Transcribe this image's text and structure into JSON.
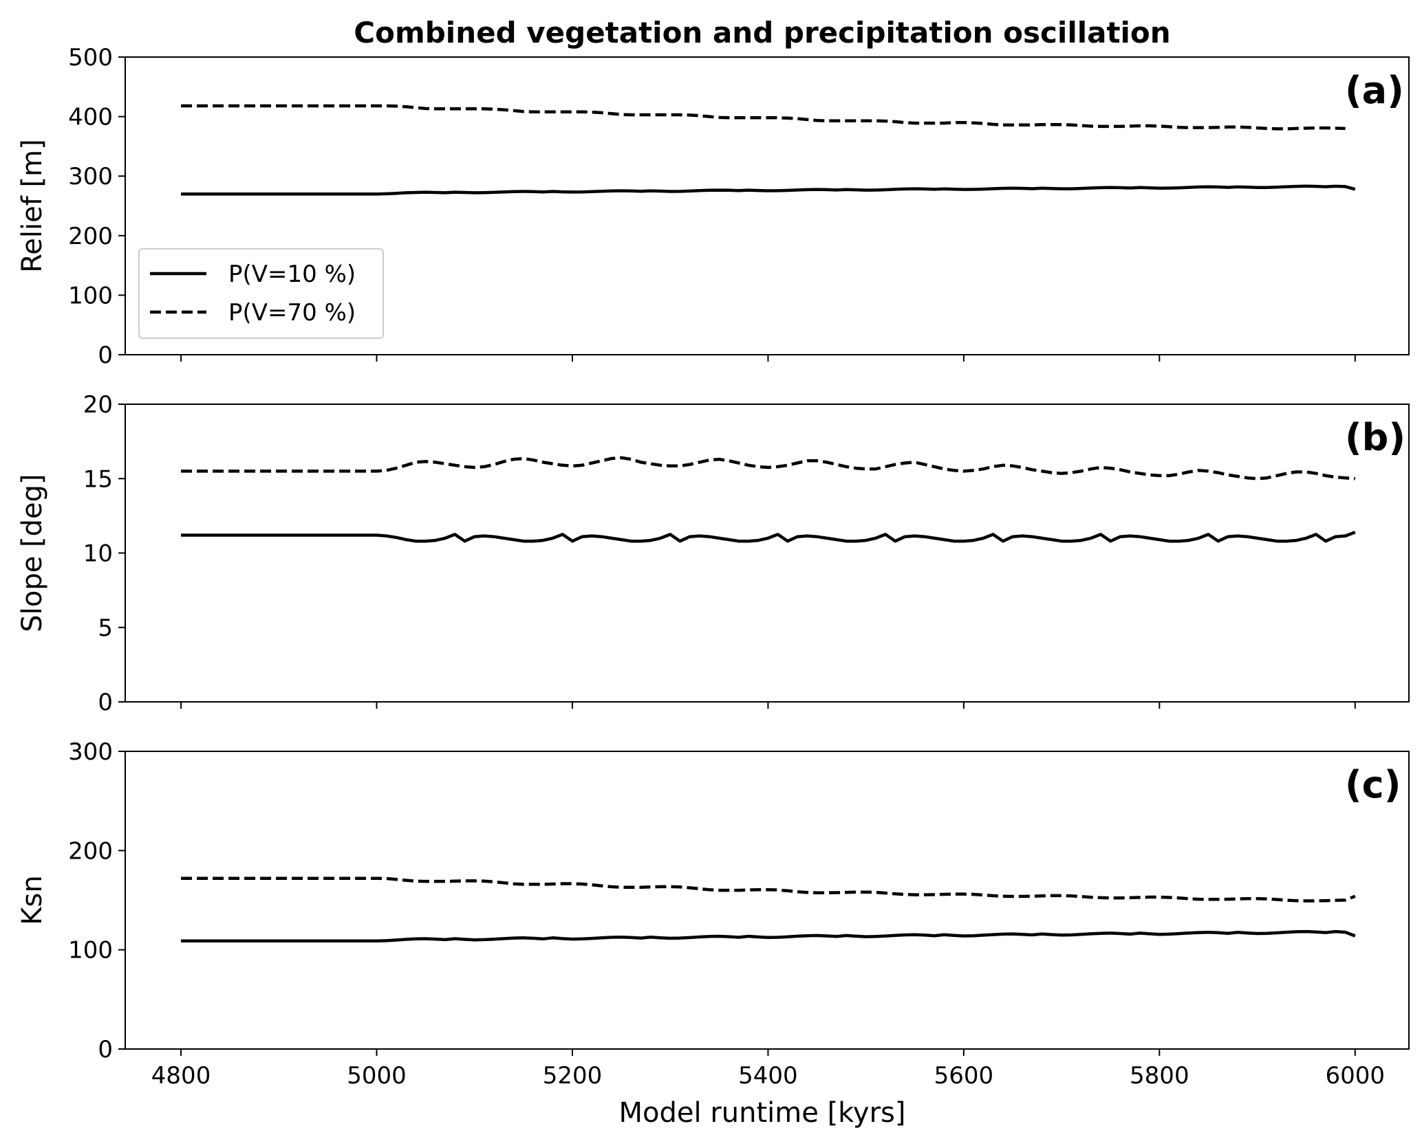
{
  "chart_data": {
    "type": "line",
    "title": "Combined vegetation and precipitation oscillation",
    "xlabel": "Model runtime [kyrs]",
    "xlim": [
      4743,
      6055
    ],
    "xticks": [
      4800,
      5000,
      5200,
      5400,
      5600,
      5800,
      6000
    ],
    "x": [
      4800,
      4810,
      4820,
      4830,
      4840,
      4850,
      4860,
      4870,
      4880,
      4890,
      4900,
      4910,
      4920,
      4930,
      4940,
      4950,
      4960,
      4970,
      4980,
      4990,
      5000,
      5010,
      5020,
      5030,
      5040,
      5050,
      5060,
      5070,
      5080,
      5090,
      5100,
      5110,
      5120,
      5130,
      5140,
      5150,
      5160,
      5170,
      5180,
      5190,
      5200,
      5210,
      5220,
      5230,
      5240,
      5250,
      5260,
      5270,
      5280,
      5290,
      5300,
      5310,
      5320,
      5330,
      5340,
      5350,
      5360,
      5370,
      5380,
      5390,
      5400,
      5410,
      5420,
      5430,
      5440,
      5450,
      5460,
      5470,
      5480,
      5490,
      5500,
      5510,
      5520,
      5530,
      5540,
      5550,
      5560,
      5570,
      5580,
      5590,
      5600,
      5610,
      5620,
      5630,
      5640,
      5650,
      5660,
      5670,
      5680,
      5690,
      5700,
      5710,
      5720,
      5730,
      5740,
      5750,
      5760,
      5770,
      5780,
      5790,
      5800,
      5810,
      5820,
      5830,
      5840,
      5850,
      5860,
      5870,
      5880,
      5890,
      5900,
      5910,
      5920,
      5930,
      5940,
      5950,
      5960,
      5970,
      5980,
      5990,
      6000
    ],
    "legend": {
      "location": "lower left",
      "panel": "a"
    },
    "grid": false,
    "panels": [
      {
        "tag": "(a)",
        "ylabel": "Relief [m]",
        "ylim": [
          0,
          500
        ],
        "yticks": [
          0,
          100,
          200,
          300,
          400,
          500
        ],
        "series": [
          {
            "name": "P(V=10 %)",
            "style": "solid",
            "values": [
              270,
              270,
              270,
              270,
              270,
              270,
              270,
              270,
              270,
              270,
              270,
              270,
              270,
              270,
              270,
              270,
              270,
              270,
              270,
              270,
              270,
              270.3,
              271,
              272,
              272.5,
              273,
              272.5,
              272,
              273,
              272.5,
              272,
              272.3,
              272.8,
              273.4,
              273.9,
              274.3,
              274,
              273.4,
              274.2,
              273.6,
              273.2,
              273.3,
              273.9,
              274.6,
              275.1,
              275.4,
              275.1,
              274.5,
              275.3,
              274.8,
              274.3,
              274.4,
              274.9,
              275.6,
              276.2,
              276.5,
              276.2,
              275.6,
              276.4,
              275.9,
              275.4,
              275.5,
              276,
              276.7,
              277.3,
              277.6,
              277.3,
              276.7,
              277.5,
              277,
              276.5,
              276.6,
              277.1,
              277.8,
              278.4,
              278.7,
              278.4,
              277.8,
              278.6,
              278.1,
              277.6,
              277.7,
              278.2,
              278.9,
              279.5,
              279.8,
              279.5,
              278.9,
              279.7,
              279.2,
              278.7,
              278.8,
              279.3,
              280,
              280.6,
              280.9,
              280.6,
              280,
              280.8,
              280.3,
              279.8,
              279.9,
              280.4,
              281.1,
              281.7,
              282,
              281.7,
              281.1,
              281.9,
              281.4,
              280.9,
              281,
              281.5,
              282.2,
              282.8,
              283.1,
              282.8,
              282.2,
              283,
              282.5,
              278
            ]
          },
          {
            "name": "P(V=70 %)",
            "style": "dashed",
            "values": [
              418,
              418,
              418,
              418,
              418,
              418,
              418,
              418,
              418,
              418,
              418,
              418,
              418,
              418,
              418,
              418,
              418,
              418,
              418,
              418,
              418,
              418,
              417.5,
              416.5,
              415,
              413.5,
              413,
              413,
              413,
              413,
              413,
              413,
              412.5,
              411.5,
              410,
              408.5,
              408,
              408,
              408,
              408,
              408,
              408,
              407.5,
              406.5,
              405,
              403.5,
              403,
              403,
              403,
              403,
              403,
              403,
              402.5,
              401.5,
              400,
              398.5,
              398,
              398,
              398,
              398,
              398,
              398,
              397.5,
              396.5,
              395,
              393.5,
              393,
              393,
              393,
              393,
              393,
              393,
              392.5,
              391.5,
              390,
              389,
              389,
              389,
              389,
              390,
              390,
              389.5,
              388.5,
              387,
              386,
              386,
              386,
              386,
              386.5,
              386.5,
              386.5,
              386,
              385,
              384,
              383.5,
              383.5,
              383.5,
              384,
              384.5,
              384.5,
              384,
              383,
              382,
              381.5,
              381.5,
              381.5,
              382,
              382.5,
              382.5,
              382,
              381,
              380,
              379.5,
              379.5,
              380,
              380.5,
              381,
              381,
              380.5,
              380
            ]
          }
        ]
      },
      {
        "tag": "(b)",
        "ylabel": "Slope [deg]",
        "ylim": [
          0,
          20
        ],
        "yticks": [
          0,
          5,
          10,
          15,
          20
        ],
        "series": [
          {
            "name": "P(V=10 %)",
            "style": "solid",
            "values": [
              11.2,
              11.2,
              11.2,
              11.2,
              11.2,
              11.2,
              11.2,
              11.2,
              11.2,
              11.2,
              11.2,
              11.2,
              11.2,
              11.2,
              11.2,
              11.2,
              11.2,
              11.2,
              11.2,
              11.2,
              11.2,
              11.15,
              11.05,
              10.9,
              10.8,
              10.8,
              10.85,
              11,
              11.25,
              10.8,
              11.1,
              11.15,
              11.1,
              11,
              10.9,
              10.8,
              10.8,
              10.85,
              11,
              11.25,
              10.8,
              11.1,
              11.15,
              11.1,
              11,
              10.9,
              10.8,
              10.8,
              10.85,
              11,
              11.25,
              10.8,
              11.1,
              11.15,
              11.1,
              11,
              10.9,
              10.8,
              10.8,
              10.85,
              11,
              11.25,
              10.8,
              11.1,
              11.15,
              11.1,
              11,
              10.9,
              10.8,
              10.8,
              10.85,
              11,
              11.25,
              10.8,
              11.1,
              11.15,
              11.1,
              11,
              10.9,
              10.8,
              10.8,
              10.85,
              11,
              11.25,
              10.8,
              11.1,
              11.15,
              11.1,
              11,
              10.9,
              10.8,
              10.8,
              10.85,
              11,
              11.25,
              10.8,
              11.1,
              11.15,
              11.1,
              11,
              10.9,
              10.8,
              10.8,
              10.85,
              11,
              11.25,
              10.8,
              11.1,
              11.15,
              11.1,
              11,
              10.9,
              10.8,
              10.8,
              10.85,
              11,
              11.25,
              10.8,
              11.1,
              11.15,
              11.4
            ]
          },
          {
            "name": "P(V=70 %)",
            "style": "dashed",
            "values": [
              15.5,
              15.5,
              15.5,
              15.5,
              15.5,
              15.5,
              15.5,
              15.5,
              15.5,
              15.5,
              15.5,
              15.5,
              15.5,
              15.5,
              15.5,
              15.5,
              15.5,
              15.5,
              15.5,
              15.5,
              15.5,
              15.55,
              15.7,
              15.9,
              16.1,
              16.15,
              16.1,
              16,
              15.9,
              15.8,
              15.75,
              15.8,
              15.95,
              16.15,
              16.3,
              16.35,
              16.25,
              16.1,
              16,
              15.9,
              15.85,
              15.9,
              16.05,
              16.2,
              16.35,
              16.4,
              16.3,
              16.1,
              16,
              15.9,
              15.85,
              15.85,
              15.95,
              16.1,
              16.25,
              16.3,
              16.2,
              16.05,
              15.9,
              15.8,
              15.75,
              15.8,
              15.9,
              16.05,
              16.2,
              16.2,
              16.1,
              15.95,
              15.8,
              15.7,
              15.65,
              15.65,
              15.8,
              15.95,
              16.05,
              16.1,
              15.95,
              15.8,
              15.65,
              15.55,
              15.5,
              15.55,
              15.65,
              15.8,
              15.9,
              15.85,
              15.75,
              15.6,
              15.5,
              15.4,
              15.35,
              15.4,
              15.5,
              15.65,
              15.75,
              15.7,
              15.6,
              15.45,
              15.35,
              15.25,
              15.2,
              15.2,
              15.3,
              15.45,
              15.55,
              15.5,
              15.4,
              15.25,
              15.15,
              15.05,
              15,
              15.05,
              15.2,
              15.35,
              15.45,
              15.45,
              15.35,
              15.2,
              15.1,
              15.05,
              15
            ]
          }
        ]
      },
      {
        "tag": "(c)",
        "ylabel": "Ksn",
        "ylim": [
          0,
          300
        ],
        "yticks": [
          0,
          100,
          200,
          300
        ],
        "series": [
          {
            "name": "P(V=10 %)",
            "style": "solid",
            "values": [
              109,
              109,
              109,
              109,
              109,
              109,
              109,
              109,
              109,
              109,
              109,
              109,
              109,
              109,
              109,
              109,
              109,
              109,
              109,
              109,
              109,
              109.2,
              109.8,
              110.5,
              111,
              111.2,
              110.8,
              110.2,
              111.2,
              110.5,
              110,
              110.2,
              110.7,
              111.3,
              111.8,
              112,
              111.6,
              111,
              112,
              111.3,
              110.8,
              111,
              111.5,
              112.1,
              112.6,
              112.8,
              112.4,
              111.8,
              112.8,
              112.1,
              111.6,
              111.8,
              112.3,
              112.9,
              113.4,
              113.6,
              113.2,
              112.6,
              113.6,
              112.9,
              112.4,
              112.6,
              113.1,
              113.7,
              114.2,
              114.4,
              114,
              113.4,
              114.4,
              113.7,
              113.2,
              113.4,
              113.9,
              114.5,
              115,
              115.2,
              114.8,
              114.2,
              115.2,
              114.5,
              114,
              114.2,
              114.7,
              115.3,
              115.8,
              116,
              115.6,
              115,
              116,
              115.3,
              114.8,
              115,
              115.5,
              116.1,
              116.6,
              116.8,
              116.4,
              115.8,
              116.8,
              116.1,
              115.6,
              115.8,
              116.3,
              116.9,
              117.4,
              117.6,
              117.2,
              116.6,
              117.6,
              116.9,
              116.4,
              116.6,
              117.1,
              117.7,
              118.2,
              118.4,
              118,
              117.4,
              118.4,
              117.7,
              114
            ]
          },
          {
            "name": "P(V=70 %)",
            "style": "dashed",
            "values": [
              172,
              172,
              172,
              172,
              172,
              172,
              172,
              172,
              172,
              172,
              172,
              172,
              172,
              172,
              172,
              172,
              172,
              172,
              172,
              172,
              172,
              171.8,
              171,
              170,
              169.2,
              169,
              169,
              169,
              169.2,
              169.5,
              169.5,
              169.2,
              168.5,
              167.5,
              166.5,
              166,
              166,
              166,
              166.3,
              166.6,
              166.6,
              166.3,
              165.5,
              164.5,
              163.5,
              163,
              163,
              163,
              163.3,
              163.6,
              163.6,
              163.3,
              162.5,
              161.5,
              160.5,
              160,
              160,
              160,
              160.3,
              160.6,
              160.6,
              160.3,
              159.5,
              158.5,
              157.8,
              157.5,
              157.5,
              157.6,
              157.9,
              158.2,
              158.2,
              157.9,
              157.2,
              156.4,
              155.8,
              155.5,
              155.5,
              155.6,
              155.9,
              156.2,
              156.2,
              155.9,
              155.2,
              154.5,
              154,
              153.8,
              153.8,
              154,
              154.3,
              154.6,
              154.6,
              154.3,
              153.7,
              153,
              152.5,
              152.3,
              152.3,
              152.5,
              152.8,
              153.1,
              153.1,
              152.8,
              152.2,
              151.5,
              151,
              150.8,
              150.8,
              151,
              151.3,
              151.6,
              151.6,
              151.3,
              150.7,
              150,
              149.5,
              149.3,
              149.3,
              149.5,
              149.8,
              150.1,
              154
            ]
          }
        ]
      }
    ]
  }
}
